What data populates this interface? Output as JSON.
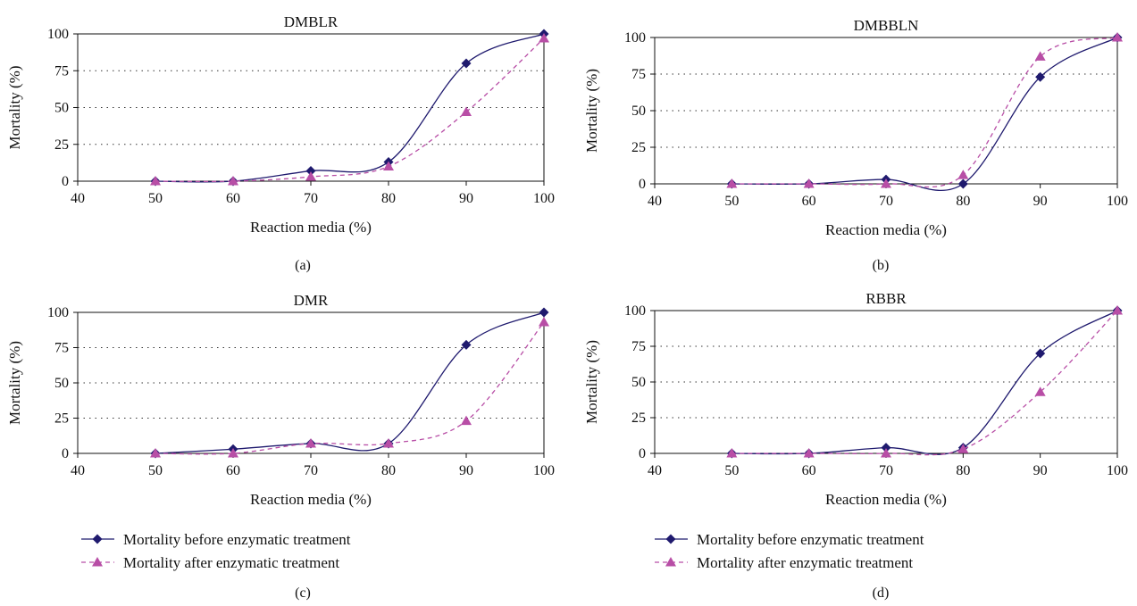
{
  "colors": {
    "before": "#1f1a6e",
    "after": "#b84ea6"
  },
  "legend": {
    "before_label": "Mortality before enzymatic treatment",
    "after_label": "Mortality after enzymatic treatment"
  },
  "chart_data": [
    {
      "type": "line",
      "panel": "(a)",
      "title": "DMBLR",
      "xlabel": "Reaction media (%)",
      "ylabel": "Mortality (%)",
      "xlim": [
        40,
        100
      ],
      "ylim": [
        0,
        100
      ],
      "xticks": [
        "40",
        "50",
        "60",
        "70",
        "80",
        "90",
        "100"
      ],
      "yticks": [
        "0",
        "25",
        "50",
        "75",
        "100"
      ],
      "x": [
        50,
        60,
        70,
        80,
        90,
        100
      ],
      "series": [
        {
          "name": "Mortality before enzymatic treatment",
          "values": [
            0,
            0,
            7,
            13,
            80,
            100
          ]
        },
        {
          "name": "Mortality after enzymatic treatment",
          "values": [
            0,
            0,
            3,
            10,
            47,
            97
          ]
        }
      ],
      "grid": "dotted horizontal",
      "legend": "bottom"
    },
    {
      "type": "line",
      "panel": "(b)",
      "title": "DMBBLN",
      "xlabel": "Reaction media (%)",
      "ylabel": "Mortality (%)",
      "xlim": [
        40,
        100
      ],
      "ylim": [
        0,
        100
      ],
      "xticks": [
        "40",
        "50",
        "60",
        "70",
        "80",
        "90",
        "100"
      ],
      "yticks": [
        "0",
        "25",
        "50",
        "75",
        "100"
      ],
      "x": [
        50,
        60,
        70,
        80,
        90,
        100
      ],
      "series": [
        {
          "name": "Mortality before enzymatic treatment",
          "values": [
            0,
            0,
            3,
            0,
            73,
            100
          ]
        },
        {
          "name": "Mortality after enzymatic treatment",
          "values": [
            0,
            0,
            0,
            6,
            87,
            100
          ]
        }
      ],
      "grid": "dotted horizontal",
      "legend": "bottom"
    },
    {
      "type": "line",
      "panel": "(c)",
      "title": "DMR",
      "xlabel": "Reaction media (%)",
      "ylabel": "Mortality (%)",
      "xlim": [
        40,
        100
      ],
      "ylim": [
        0,
        100
      ],
      "xticks": [
        "40",
        "50",
        "60",
        "70",
        "80",
        "90",
        "100"
      ],
      "yticks": [
        "0",
        "25",
        "50",
        "75",
        "100"
      ],
      "x": [
        50,
        60,
        70,
        80,
        90,
        100
      ],
      "series": [
        {
          "name": "Mortality before enzymatic treatment",
          "values": [
            0,
            3,
            7,
            7,
            77,
            100
          ]
        },
        {
          "name": "Mortality after enzymatic treatment",
          "values": [
            0,
            0,
            7,
            7,
            23,
            93
          ]
        }
      ],
      "grid": "dotted horizontal",
      "legend": "bottom"
    },
    {
      "type": "line",
      "panel": "(d)",
      "title": "RBBR",
      "xlabel": "Reaction media (%)",
      "ylabel": "Mortality (%)",
      "xlim": [
        40,
        100
      ],
      "ylim": [
        0,
        100
      ],
      "xticks": [
        "40",
        "50",
        "60",
        "70",
        "80",
        "90",
        "100"
      ],
      "yticks": [
        "0",
        "25",
        "50",
        "75",
        "100"
      ],
      "x": [
        50,
        60,
        70,
        80,
        90,
        100
      ],
      "series": [
        {
          "name": "Mortality before enzymatic treatment",
          "values": [
            0,
            0,
            4,
            4,
            70,
            100
          ]
        },
        {
          "name": "Mortality after enzymatic treatment",
          "values": [
            0,
            0,
            0,
            3,
            43,
            100
          ]
        }
      ],
      "grid": "dotted horizontal",
      "legend": "bottom"
    }
  ]
}
